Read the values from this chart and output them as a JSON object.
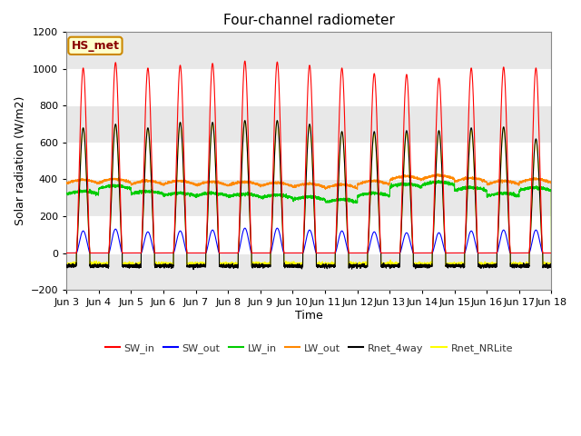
{
  "title": "Four-channel radiometer",
  "ylabel": "Solar radiation (W/m2)",
  "xlabel": "Time",
  "ylim": [
    -200,
    1200
  ],
  "station_label": "HS_met",
  "x_tick_labels": [
    "Jun 3",
    "Jun 4",
    "Jun 5",
    "Jun 6",
    "Jun 7",
    "Jun 8",
    "Jun 9",
    "Jun 10",
    "Jun 11",
    "Jun 12",
    "Jun 13",
    "Jun 14",
    "Jun 15",
    "Jun 16",
    "Jun 17",
    "Jun 18"
  ],
  "n_days": 15,
  "points_per_day": 288,
  "SW_in_peak": [
    1005,
    1035,
    1005,
    1020,
    1030,
    1043,
    1038,
    1020,
    1005,
    975,
    970,
    950,
    1005,
    1010,
    1005
  ],
  "SW_out_peak": [
    120,
    130,
    115,
    120,
    125,
    135,
    135,
    125,
    120,
    115,
    110,
    110,
    120,
    125,
    125
  ],
  "LW_in_base": [
    320,
    350,
    320,
    310,
    310,
    305,
    300,
    290,
    275,
    310,
    360,
    370,
    340,
    310,
    340
  ],
  "LW_out_base": [
    378,
    382,
    372,
    372,
    367,
    367,
    362,
    357,
    352,
    372,
    397,
    402,
    387,
    372,
    382
  ],
  "Rnet_4way_peak": [
    680,
    700,
    680,
    710,
    710,
    720,
    720,
    700,
    660,
    660,
    665,
    665,
    680,
    685,
    620
  ],
  "Rnet_NRLite_peak": [
    678,
    698,
    678,
    708,
    708,
    718,
    718,
    698,
    658,
    648,
    653,
    663,
    668,
    683,
    613
  ],
  "night_Rnet_4way": -70,
  "night_Rnet_NRLite": -60,
  "colors": {
    "SW_in": "#ff0000",
    "SW_out": "#0000ff",
    "LW_in": "#00cc00",
    "LW_out": "#ff8800",
    "Rnet_4way": "#000000",
    "Rnet_NRLite": "#ffff00"
  },
  "bg_color": "#ffffff",
  "plot_bg_color": "#ffffff",
  "band_color_light": "#ffffff",
  "band_color_dark": "#e8e8e8",
  "title_fontsize": 11,
  "label_fontsize": 9,
  "tick_fontsize": 8,
  "legend_fontsize": 8
}
